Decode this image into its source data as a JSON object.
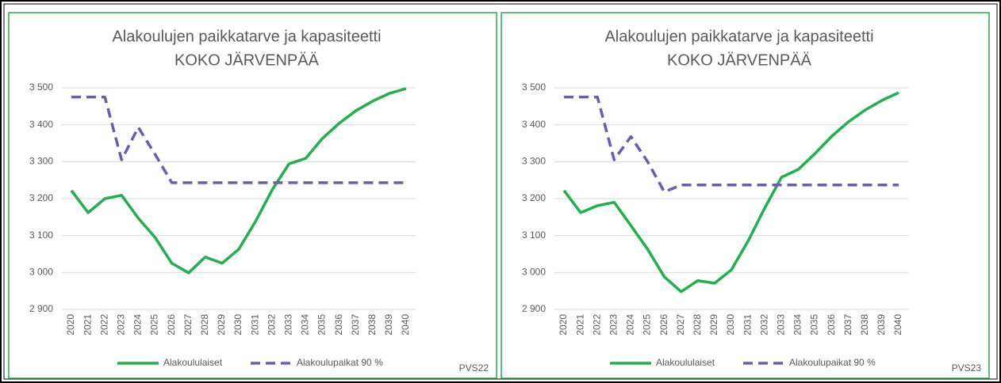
{
  "chart_data": [
    {
      "type": "line",
      "title": "Alakoulujen paikkatarve ja kapasiteetti",
      "subtitle": "KOKO JÄRVENPÄÄ",
      "categories": [
        "2020",
        "2021",
        "2022",
        "2023",
        "2024",
        "2025",
        "2026",
        "2027",
        "2028",
        "2029",
        "2030",
        "2031",
        "2032",
        "2033",
        "2034",
        "2035",
        "2036",
        "2037",
        "2038",
        "2039",
        "2040"
      ],
      "series": [
        {
          "name": "Alakoululaiset",
          "color": "#21b04b",
          "dash": false,
          "values": [
            3222,
            3162,
            3200,
            3209,
            3147,
            3095,
            3025,
            2999,
            3042,
            3025,
            3063,
            3138,
            3224,
            3294,
            3309,
            3363,
            3404,
            3438,
            3464,
            3485,
            3498
          ]
        },
        {
          "name": "Alakoulupaikat 90 %",
          "color": "#6a5bb5",
          "dash": true,
          "values": [
            3475,
            3475,
            3475,
            3305,
            3393,
            3320,
            3243,
            3243,
            3243,
            3243,
            3243,
            3243,
            3243,
            3243,
            3243,
            3243,
            3243,
            3243,
            3243,
            3243,
            3243
          ]
        }
      ],
      "ylim": [
        2900,
        3500
      ],
      "yticks": [
        {
          "value": 2900,
          "label": "2 900"
        },
        {
          "value": 3000,
          "label": "3 000"
        },
        {
          "value": 3100,
          "label": "3 100"
        },
        {
          "value": 3200,
          "label": "3 200"
        },
        {
          "value": 3300,
          "label": "3 300"
        },
        {
          "value": 3400,
          "label": "3 400"
        },
        {
          "value": 3500,
          "label": "3 500"
        }
      ],
      "grid": true,
      "annotation": "PVS22"
    },
    {
      "type": "line",
      "title": "Alakoulujen paikkatarve ja kapasiteetti",
      "subtitle": "KOKO JÄRVENPÄÄ",
      "categories": [
        "2020",
        "2021",
        "2022",
        "2023",
        "2024",
        "2025",
        "2026",
        "2027",
        "2028",
        "2029",
        "2030",
        "2031",
        "2032",
        "2033",
        "2034",
        "2035",
        "2036",
        "2037",
        "2038",
        "2039",
        "2040"
      ],
      "series": [
        {
          "name": "Alakoululaiset",
          "color": "#21b04b",
          "dash": false,
          "values": [
            3222,
            3162,
            3181,
            3190,
            3127,
            3063,
            2988,
            2948,
            2978,
            2971,
            3007,
            3085,
            3175,
            3258,
            3279,
            3322,
            3369,
            3408,
            3440,
            3466,
            3487
          ]
        },
        {
          "name": "Alakoulupaikat 90 %",
          "color": "#6a5bb5",
          "dash": true,
          "values": [
            3475,
            3475,
            3475,
            3305,
            3368,
            3300,
            3218,
            3237,
            3237,
            3237,
            3237,
            3237,
            3237,
            3237,
            3237,
            3237,
            3237,
            3237,
            3237,
            3237,
            3237
          ]
        }
      ],
      "ylim": [
        2900,
        3500
      ],
      "yticks": [
        {
          "value": 2900,
          "label": "2 900"
        },
        {
          "value": 3000,
          "label": "3 000"
        },
        {
          "value": 3100,
          "label": "3 100"
        },
        {
          "value": 3200,
          "label": "3 200"
        },
        {
          "value": 3300,
          "label": "3 300"
        },
        {
          "value": 3400,
          "label": "3 400"
        },
        {
          "value": 3500,
          "label": "3 500"
        }
      ],
      "grid": true,
      "annotation": "PVS23"
    }
  ]
}
